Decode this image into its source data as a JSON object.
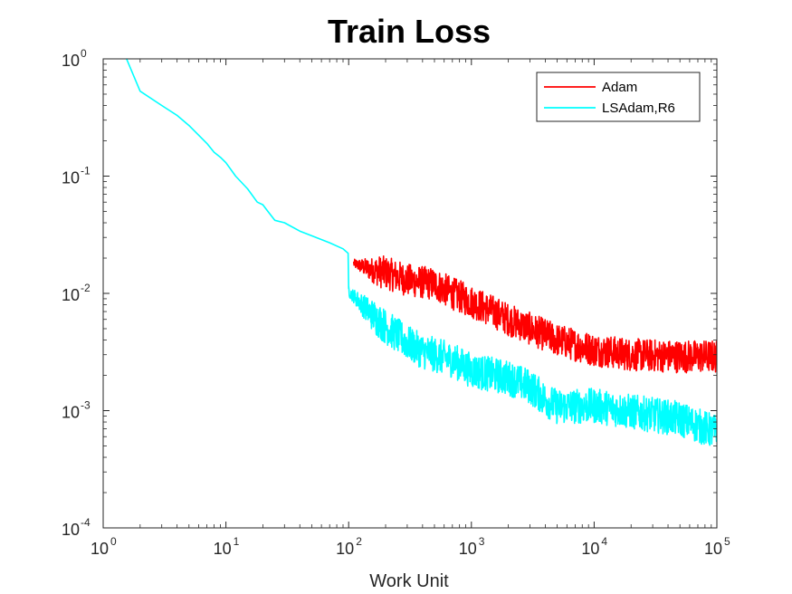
{
  "chart_data": {
    "type": "line",
    "title": "Train Loss",
    "xlabel": "Work Unit",
    "ylabel": "",
    "xscale": "log",
    "yscale": "log",
    "xlim": [
      1,
      100000
    ],
    "ylim": [
      0.0001,
      1
    ],
    "grid": false,
    "legend_position": "top-right",
    "x_ticks": [
      {
        "base": "10",
        "exp": "0"
      },
      {
        "base": "10",
        "exp": "1"
      },
      {
        "base": "10",
        "exp": "2"
      },
      {
        "base": "10",
        "exp": "3"
      },
      {
        "base": "10",
        "exp": "4"
      },
      {
        "base": "10",
        "exp": "5"
      }
    ],
    "y_ticks": [
      {
        "base": "10",
        "exp": "0"
      },
      {
        "base": "10",
        "exp": "-1"
      },
      {
        "base": "10",
        "exp": "-2"
      },
      {
        "base": "10",
        "exp": "-3"
      },
      {
        "base": "10",
        "exp": "-4"
      }
    ],
    "series": [
      {
        "name": "Adam",
        "color": "#ff0000",
        "noise": 0.28,
        "x": [
          110,
          150,
          200,
          300,
          500,
          700,
          1000,
          1500,
          2000,
          3000,
          5000,
          10000,
          20000,
          50000,
          100000
        ],
        "y": [
          0.018,
          0.016,
          0.015,
          0.013,
          0.012,
          0.01,
          0.0085,
          0.007,
          0.006,
          0.005,
          0.004,
          0.0033,
          0.003,
          0.0029,
          0.0029
        ]
      },
      {
        "name": "LSAdam,R6",
        "color": "#00ffff",
        "noise": 0.3,
        "x": [
          1.55,
          2,
          3,
          4,
          5,
          7,
          8,
          9,
          10,
          12,
          15,
          18,
          20,
          22,
          25,
          30,
          40,
          50,
          70,
          90,
          99,
          100,
          102,
          110,
          150,
          200,
          300,
          400,
          500,
          700,
          1000,
          2000,
          3000,
          4000,
          5000,
          10000,
          20000,
          50000,
          100000
        ],
        "y": [
          1.0,
          0.53,
          0.4,
          0.33,
          0.27,
          0.19,
          0.16,
          0.145,
          0.13,
          0.1,
          0.078,
          0.06,
          0.057,
          0.05,
          0.042,
          0.04,
          0.034,
          0.031,
          0.027,
          0.024,
          0.022,
          0.011,
          0.01,
          0.0095,
          0.0068,
          0.0052,
          0.0038,
          0.0032,
          0.003,
          0.0027,
          0.0022,
          0.0019,
          0.0016,
          0.00125,
          0.00108,
          0.0011,
          0.00098,
          0.00085,
          0.00065
        ]
      }
    ]
  }
}
